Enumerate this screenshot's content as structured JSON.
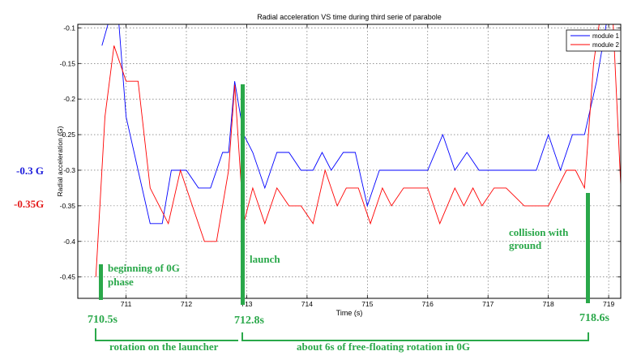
{
  "chart_data": {
    "type": "line",
    "title": "Radial acceleration VS time during third serie of parabole",
    "xlabel": "Time (s)",
    "ylabel": "Radial acceleration (G)",
    "xlim": [
      710.2,
      719.2
    ],
    "ylim": [
      -0.48,
      -0.095
    ],
    "xticks": [
      711,
      712,
      713,
      714,
      715,
      716,
      717,
      718,
      719
    ],
    "yticks": [
      -0.1,
      -0.15,
      -0.2,
      -0.25,
      -0.3,
      -0.35,
      -0.4,
      -0.45
    ],
    "grid": true,
    "legend_position": "top-right",
    "series": [
      {
        "name": "module 1",
        "color": "#0000ff",
        "points": [
          [
            710.6,
            -0.125
          ],
          [
            710.75,
            -0.08
          ],
          [
            710.85,
            -0.06
          ],
          [
            711.0,
            -0.225
          ],
          [
            711.2,
            -0.3
          ],
          [
            711.4,
            -0.375
          ],
          [
            711.6,
            -0.375
          ],
          [
            711.75,
            -0.3
          ],
          [
            711.9,
            -0.3
          ],
          [
            712.0,
            -0.3
          ],
          [
            712.2,
            -0.325
          ],
          [
            712.4,
            -0.325
          ],
          [
            712.6,
            -0.275
          ],
          [
            712.7,
            -0.275
          ],
          [
            712.8,
            -0.175
          ],
          [
            712.95,
            -0.25
          ],
          [
            713.1,
            -0.275
          ],
          [
            713.3,
            -0.325
          ],
          [
            713.5,
            -0.275
          ],
          [
            713.7,
            -0.275
          ],
          [
            713.9,
            -0.3
          ],
          [
            714.1,
            -0.3
          ],
          [
            714.25,
            -0.275
          ],
          [
            714.4,
            -0.3
          ],
          [
            714.6,
            -0.275
          ],
          [
            714.8,
            -0.275
          ],
          [
            715.0,
            -0.35
          ],
          [
            715.2,
            -0.3
          ],
          [
            715.4,
            -0.3
          ],
          [
            715.6,
            -0.3
          ],
          [
            716.0,
            -0.3
          ],
          [
            716.25,
            -0.25
          ],
          [
            716.45,
            -0.3
          ],
          [
            716.65,
            -0.275
          ],
          [
            716.85,
            -0.3
          ],
          [
            717.0,
            -0.3
          ],
          [
            717.5,
            -0.3
          ],
          [
            717.8,
            -0.3
          ],
          [
            718.0,
            -0.25
          ],
          [
            718.2,
            -0.3
          ],
          [
            718.4,
            -0.25
          ],
          [
            718.6,
            -0.25
          ],
          [
            718.8,
            -0.175
          ],
          [
            719.0,
            -0.075
          ]
        ]
      },
      {
        "name": "module 2",
        "color": "#ff0000",
        "points": [
          [
            710.5,
            -0.45
          ],
          [
            710.65,
            -0.225
          ],
          [
            710.8,
            -0.125
          ],
          [
            711.0,
            -0.175
          ],
          [
            711.2,
            -0.175
          ],
          [
            711.4,
            -0.325
          ],
          [
            711.7,
            -0.375
          ],
          [
            711.9,
            -0.3
          ],
          [
            712.1,
            -0.35
          ],
          [
            712.3,
            -0.4
          ],
          [
            712.5,
            -0.4
          ],
          [
            712.7,
            -0.3
          ],
          [
            712.8,
            -0.18
          ],
          [
            712.95,
            -0.375
          ],
          [
            713.1,
            -0.325
          ],
          [
            713.3,
            -0.375
          ],
          [
            713.5,
            -0.325
          ],
          [
            713.7,
            -0.35
          ],
          [
            713.9,
            -0.35
          ],
          [
            714.1,
            -0.375
          ],
          [
            714.3,
            -0.3
          ],
          [
            714.5,
            -0.35
          ],
          [
            714.65,
            -0.325
          ],
          [
            714.85,
            -0.325
          ],
          [
            715.05,
            -0.375
          ],
          [
            715.25,
            -0.325
          ],
          [
            715.4,
            -0.35
          ],
          [
            715.6,
            -0.325
          ],
          [
            715.8,
            -0.325
          ],
          [
            716.0,
            -0.325
          ],
          [
            716.2,
            -0.375
          ],
          [
            716.45,
            -0.325
          ],
          [
            716.6,
            -0.35
          ],
          [
            716.75,
            -0.325
          ],
          [
            716.9,
            -0.35
          ],
          [
            717.1,
            -0.325
          ],
          [
            717.3,
            -0.325
          ],
          [
            717.6,
            -0.35
          ],
          [
            718.0,
            -0.35
          ],
          [
            718.3,
            -0.3
          ],
          [
            718.45,
            -0.3
          ],
          [
            718.6,
            -0.325
          ],
          [
            718.75,
            -0.15
          ],
          [
            718.9,
            -0.06
          ],
          [
            719.05,
            -0.05
          ],
          [
            719.3,
            -0.5
          ]
        ]
      }
    ]
  },
  "annotations": {
    "level_blue": {
      "text": "-0.3 G",
      "color": "#1a1adb"
    },
    "level_red": {
      "text": "-0.35G",
      "color": "#e41b1b"
    },
    "beginning_line1": "beginning of 0G",
    "beginning_line2": "phase",
    "launch": "launch",
    "collision_line1": "collision with",
    "collision_line2": "ground",
    "time_start": "710.5s",
    "time_launch": "712.8s",
    "time_end": "718.6s",
    "bracket_rotation_launcher": "rotation on the launcher",
    "bracket_free_floating": "about 6s of free-floating  rotation in 0G",
    "annotation_color": "#2aa84a"
  }
}
